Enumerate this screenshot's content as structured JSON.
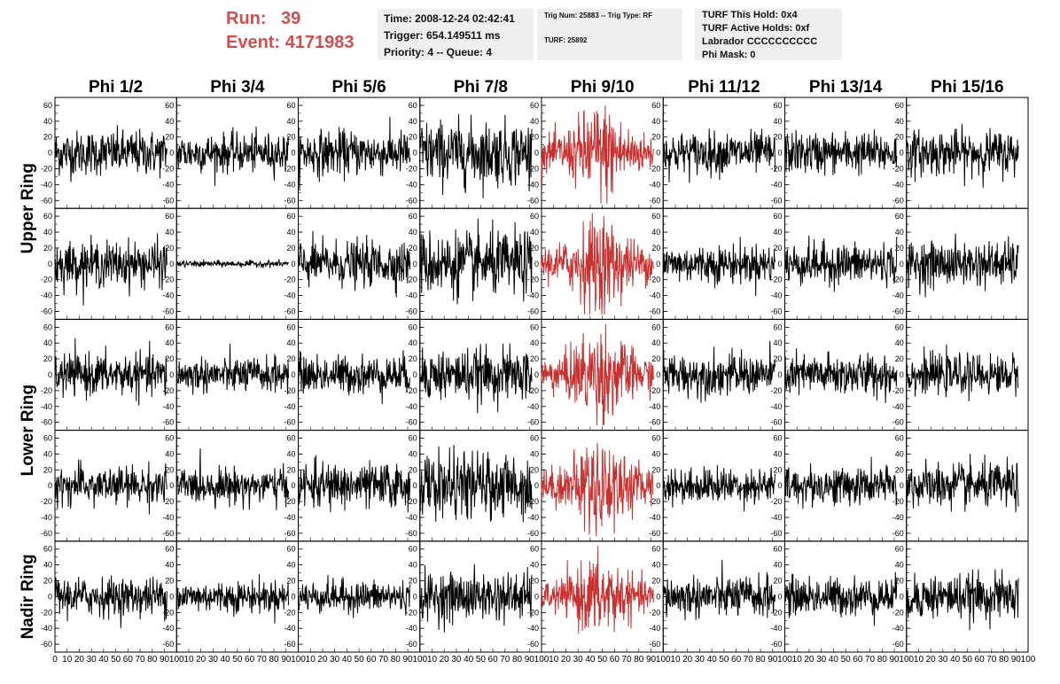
{
  "header": {
    "run_label": "Run:",
    "run_value": "39",
    "event_label": "Event:",
    "event_value": "4171983"
  },
  "info_box_1": {
    "time": "Time: 2008-12-24 02:42:41",
    "trigger": "Trigger: 654.149511 ms",
    "priority": "Priority: 4 -- Queue: 4"
  },
  "info_box_2": {
    "trig": "Trig Num: 25883 -- Trig Type: RF",
    "turf": "TURF: 25892"
  },
  "info_box_3": {
    "hold": "TURF This Hold: 0x4",
    "active": "TURF Active Holds: 0xf",
    "labrador": "Labrador CCCCCCCCCC",
    "phi_mask": "Phi Mask: 0"
  },
  "colors": {
    "normal_trace": "#000000",
    "highlight_trace": "#c8302f",
    "header_text": "#d05050"
  },
  "chart_data": {
    "type": "line",
    "columns": [
      "Phi 1/2",
      "Phi 3/4",
      "Phi 5/6",
      "Phi 7/8",
      "Phi 9/10",
      "Phi 11/12",
      "Phi 13/14",
      "Phi 15/16"
    ],
    "row_groups": [
      "Upper Ring",
      "Lower Ring",
      "Nadir Ring"
    ],
    "rows_per_group": [
      2,
      2,
      1
    ],
    "highlight_column": "Phi 9/10",
    "xlim": [
      0,
      100
    ],
    "ylim": [
      -70,
      70
    ],
    "x_ticks": [
      0,
      10,
      20,
      30,
      40,
      50,
      60,
      70,
      80,
      90,
      100
    ],
    "y_ticks": [
      -60,
      -40,
      -20,
      0,
      20,
      40,
      60
    ],
    "trace_x_range": [
      0,
      92
    ],
    "amplitude_rms": [
      [
        14,
        12,
        14,
        20,
        24,
        13,
        13,
        14
      ],
      [
        14,
        2,
        14,
        20,
        24,
        12,
        13,
        14
      ],
      [
        13,
        11,
        12,
        16,
        24,
        13,
        13,
        12
      ],
      [
        12,
        11,
        14,
        20,
        24,
        11,
        12,
        14
      ],
      [
        12,
        10,
        10,
        15,
        20,
        13,
        12,
        14
      ]
    ]
  }
}
